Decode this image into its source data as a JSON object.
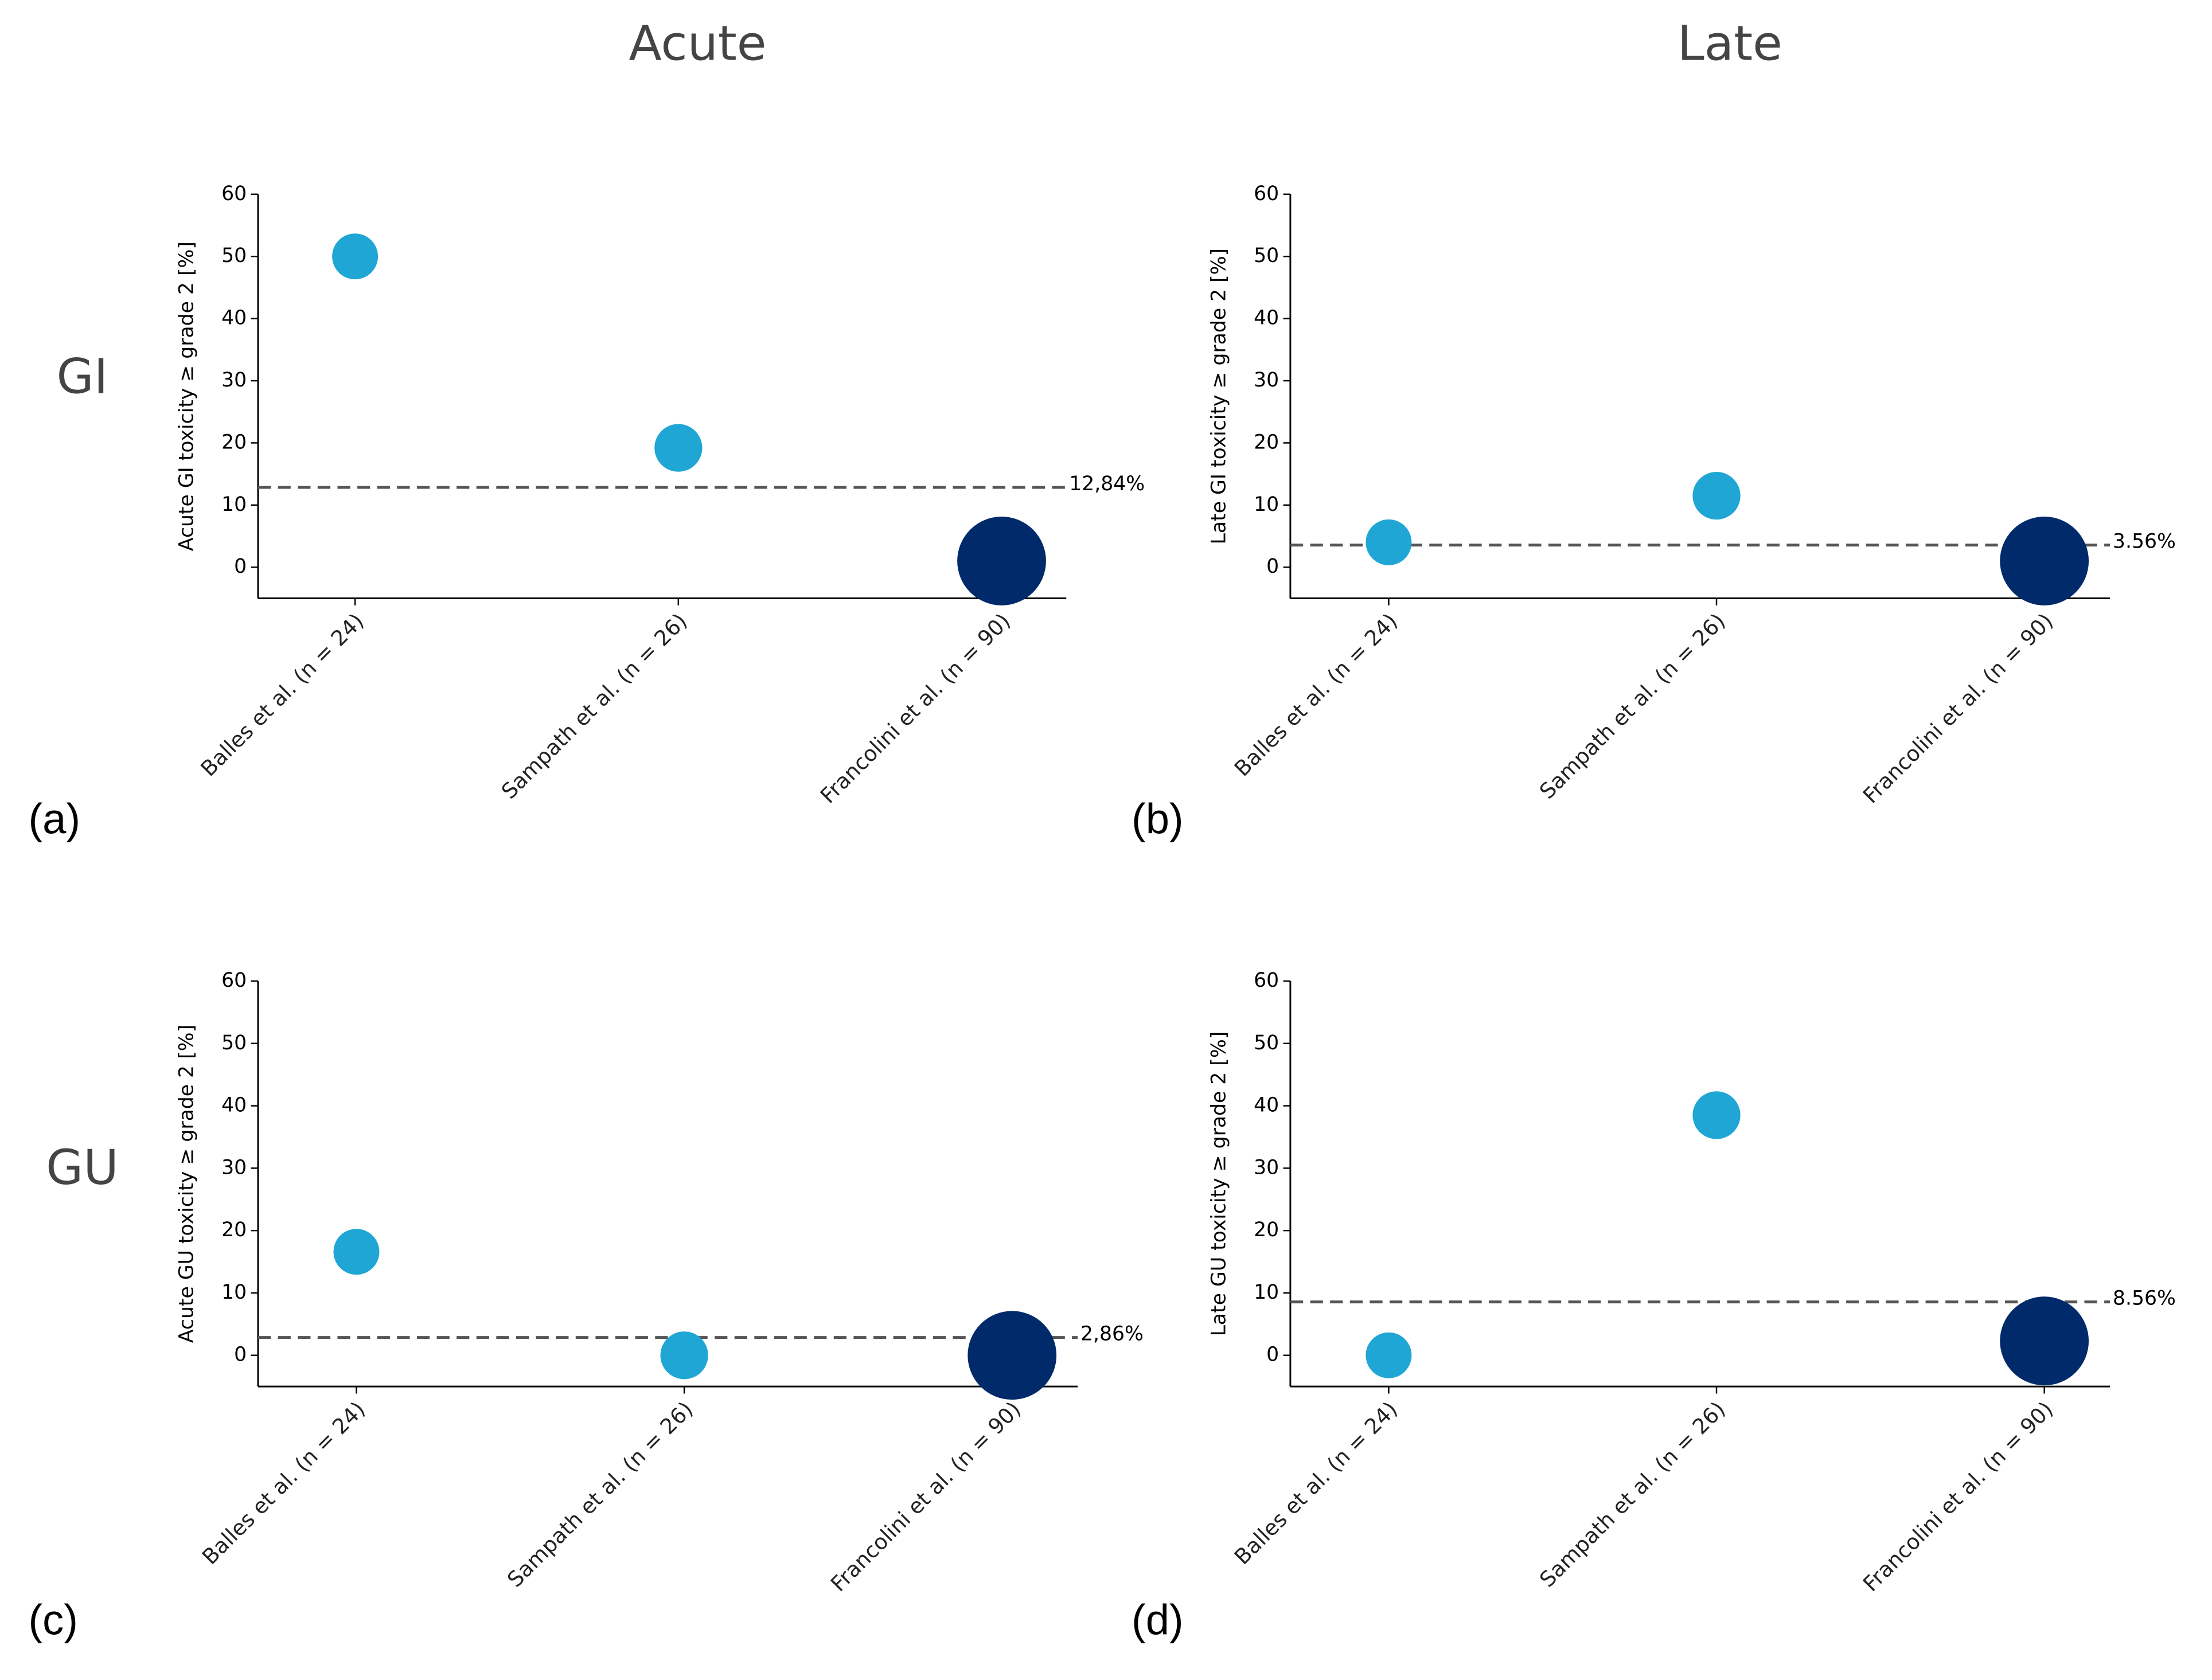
{
  "column_titles": [
    "Acute",
    "Late"
  ],
  "row_labels": [
    "GI",
    "GU"
  ],
  "chart_data": [
    {
      "type": "scatter",
      "panel": "(a)",
      "ylabel": "Acute GI toxicity ≥ grade 2 [%]",
      "categories": [
        "Balles et al. (n = 24)",
        "Sampath et al. (n = 26)",
        "Francolini et al. (n = 90)"
      ],
      "values": [
        50,
        19.2,
        1
      ],
      "sizes": [
        24,
        26,
        90
      ],
      "colors": [
        "#1fa6d5",
        "#1fa6d5",
        "#002a6a"
      ],
      "ylim": [
        -5,
        60
      ],
      "yticks": [
        0,
        10,
        20,
        30,
        40,
        50,
        60
      ],
      "reference_line": {
        "value": 12.84,
        "label": "12,84%"
      }
    },
    {
      "type": "scatter",
      "panel": "(b)",
      "ylabel": "Late GI toxicity ≥ grade 2 [%]",
      "categories": [
        "Balles et al. (n = 24)",
        "Sampath et al. (n = 26)",
        "Francolini et al. (n = 90)"
      ],
      "values": [
        4,
        11.5,
        1
      ],
      "sizes": [
        24,
        26,
        90
      ],
      "colors": [
        "#1fa6d5",
        "#1fa6d5",
        "#002a6a"
      ],
      "ylim": [
        -5,
        60
      ],
      "yticks": [
        0,
        10,
        20,
        30,
        40,
        50,
        60
      ],
      "reference_line": {
        "value": 3.56,
        "label": "3.56%"
      }
    },
    {
      "type": "scatter",
      "panel": "(c)",
      "ylabel": "Acute GU toxicity ≥ grade 2 [%]",
      "categories": [
        "Balles et al. (n = 24)",
        "Sampath et al. (n = 26)",
        "Francolini et al. (n = 90)"
      ],
      "values": [
        16.6,
        0,
        0
      ],
      "sizes": [
        24,
        26,
        90
      ],
      "colors": [
        "#1fa6d5",
        "#1fa6d5",
        "#002a6a"
      ],
      "ylim": [
        -5,
        60
      ],
      "yticks": [
        0,
        10,
        20,
        30,
        40,
        50,
        60
      ],
      "reference_line": {
        "value": 2.86,
        "label": "2,86%"
      }
    },
    {
      "type": "scatter",
      "panel": "(d)",
      "ylabel": "Late GU toxicity ≥ grade 2 [%]",
      "categories": [
        "Balles et al. (n = 24)",
        "Sampath et al. (n = 26)",
        "Francolini et al. (n = 90)"
      ],
      "values": [
        0,
        38.5,
        2.3
      ],
      "sizes": [
        24,
        26,
        90
      ],
      "colors": [
        "#1fa6d5",
        "#1fa6d5",
        "#002a6a"
      ],
      "ylim": [
        -5,
        60
      ],
      "yticks": [
        0,
        10,
        20,
        30,
        40,
        50,
        60
      ],
      "reference_line": {
        "value": 8.56,
        "label": "8.56%"
      }
    }
  ]
}
